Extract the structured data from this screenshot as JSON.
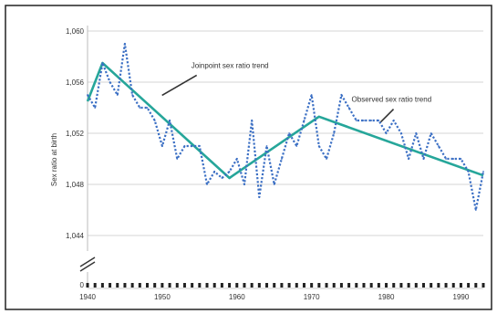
{
  "chart_data": {
    "type": "line",
    "title": "",
    "ylabel": "Sex ratio at birth",
    "xlabel": "",
    "xlim": [
      1940,
      1993
    ],
    "ylim": [
      1044,
      1060
    ],
    "x_ticks": [
      1940,
      1950,
      1960,
      1970,
      1980,
      1990
    ],
    "x_tick_labels": [
      "1940",
      "1950",
      "1960",
      "1970",
      "1980",
      "1990"
    ],
    "y_ticks": [
      1044,
      1048,
      1052,
      1056,
      1060
    ],
    "y_tick_labels": [
      "1,044",
      "1,048",
      "1,052",
      "1,056",
      "1,060"
    ],
    "y_zero_label": "0",
    "axis_break": true,
    "grid": "horizontal",
    "legend": "none",
    "series": [
      {
        "name": "Observed sex ratio trend",
        "style": "dotted",
        "color": "#3b6fc4",
        "x": [
          1940,
          1941,
          1942,
          1943,
          1944,
          1945,
          1946,
          1947,
          1948,
          1949,
          1950,
          1951,
          1952,
          1953,
          1954,
          1955,
          1956,
          1957,
          1958,
          1959,
          1960,
          1961,
          1962,
          1963,
          1964,
          1965,
          1966,
          1967,
          1968,
          1969,
          1970,
          1971,
          1972,
          1973,
          1974,
          1975,
          1976,
          1977,
          1978,
          1979,
          1980,
          1981,
          1982,
          1983,
          1984,
          1985,
          1986,
          1987,
          1988,
          1989,
          1990,
          1991,
          1992,
          1993
        ],
        "values": [
          1055,
          1054,
          1057.5,
          1056,
          1055,
          1059,
          1055,
          1054,
          1054,
          1053,
          1051,
          1053,
          1050,
          1051,
          1051,
          1051,
          1048,
          1049,
          1048.5,
          1049,
          1050,
          1048,
          1053,
          1047,
          1051,
          1048,
          1050,
          1052,
          1051,
          1053,
          1055,
          1051,
          1050,
          1052,
          1055,
          1054,
          1053,
          1053,
          1053,
          1053,
          1052,
          1053,
          1052,
          1050,
          1052,
          1050,
          1052,
          1051,
          1050,
          1050,
          1050,
          1049,
          1046,
          1049
        ]
      },
      {
        "name": "Joinpoint sex ratio trend",
        "style": "solid",
        "color": "#26a69a",
        "x": [
          1940,
          1942,
          1959,
          1971,
          1993
        ],
        "values": [
          1054.5,
          1057.5,
          1048.5,
          1053.3,
          1048.7
        ]
      }
    ],
    "annotations": [
      {
        "text": "Joinpoint sex ratio trend",
        "series": 1,
        "point_x": 1949,
        "point_y": 1054.4
      },
      {
        "text": "Observed sex ratio trend",
        "series": 0,
        "point_x": 1980,
        "point_y": 1052.6
      }
    ]
  }
}
